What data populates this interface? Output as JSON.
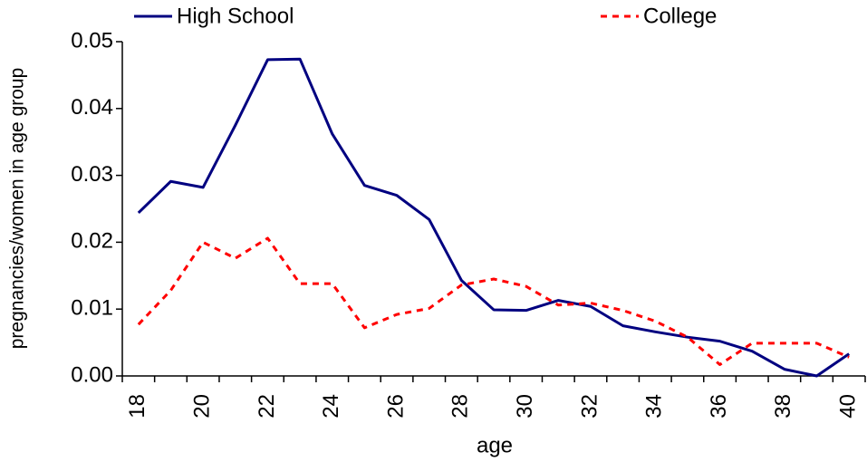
{
  "chart_data": {
    "type": "line",
    "x_label": "age",
    "y_label": "pregnancies/women in age group",
    "categories": [
      "18",
      null,
      "20",
      null,
      "22",
      null,
      "24",
      null,
      "26",
      null,
      "28",
      null,
      "30",
      null,
      "32",
      null,
      "34",
      null,
      "36",
      null,
      "38",
      null,
      "40"
    ],
    "series": [
      {
        "name": "High School",
        "color": "#000080",
        "dash": "solid",
        "values": [
          0.0244,
          0.0291,
          0.0282,
          0.0375,
          0.0473,
          0.0474,
          0.0362,
          0.0285,
          0.027,
          0.0234,
          0.0143,
          0.0099,
          0.0098,
          0.0113,
          0.0104,
          0.0075,
          0.0066,
          0.0058,
          0.0052,
          0.0037,
          0.001,
          0.0,
          0.0033
        ]
      },
      {
        "name": "College",
        "color": "#ff0000",
        "dash": "dashed",
        "values": [
          0.0077,
          0.0128,
          0.02,
          0.0176,
          0.0206,
          0.0138,
          0.0138,
          0.0072,
          0.0092,
          0.0101,
          0.0136,
          0.0145,
          0.0134,
          0.0106,
          0.0109,
          0.0098,
          0.0082,
          0.0058,
          0.0017,
          0.0049,
          0.0049,
          0.0049,
          0.0028
        ]
      }
    ],
    "ylim": [
      0,
      0.05
    ],
    "yticks": [
      {
        "value": 0,
        "label": "0.00"
      },
      0.01,
      0.02,
      0.03,
      0.04,
      0.05
    ],
    "grid": false,
    "legend": "top"
  }
}
